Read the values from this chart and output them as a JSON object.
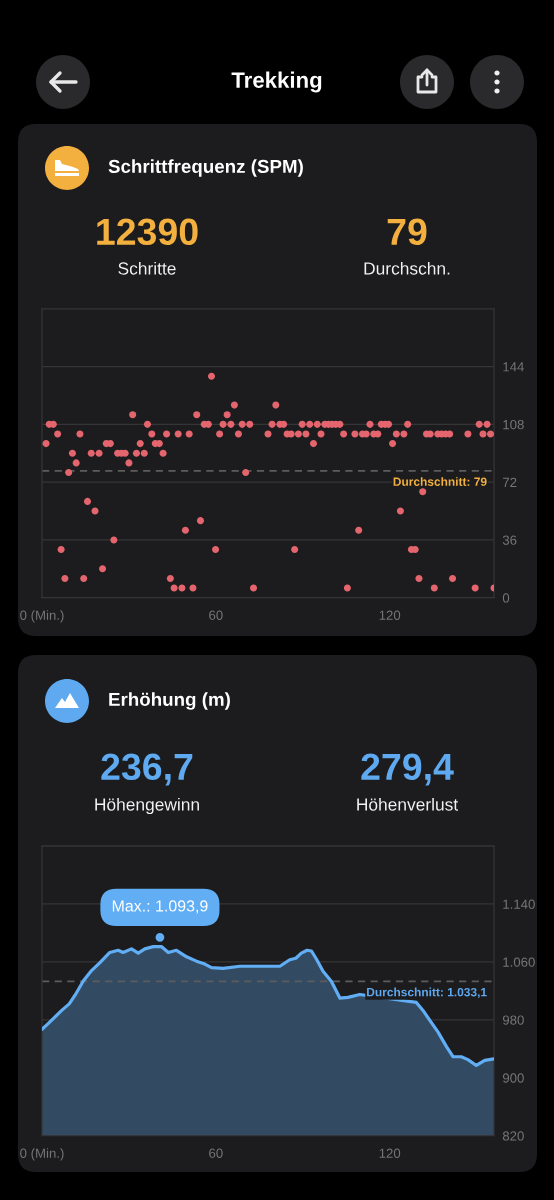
{
  "chart_data": [
    {
      "type": "other",
      "title": "Trekking"
    },
    {
      "type": "scatter",
      "title": "Schrittfrequenz (SPM)",
      "annotations": [
        "12390",
        "Schritte",
        "79",
        "Durchschn."
      ],
      "x": [
        1.4,
        2.5,
        3.9,
        5.4,
        6.6,
        7.9,
        9.2,
        10.5,
        11.8,
        13.1,
        14.4,
        15.7,
        17.0,
        18.3,
        19.7,
        20.9,
        22.2,
        23.6,
        24.8,
        26.1,
        27.4,
        28.7,
        30.0,
        31.3,
        32.6,
        33.9,
        35.3,
        36.4,
        37.9,
        39.1,
        40.5,
        41.8,
        43.0,
        44.3,
        45.6,
        47.0,
        48.3,
        49.5,
        50.8,
        52.1,
        53.4,
        54.7,
        56.0,
        57.4,
        58.5,
        59.9,
        61.3,
        62.5,
        63.9,
        65.2,
        66.4,
        67.8,
        69.1,
        70.3,
        71.7,
        73.0,
        78.0,
        79.4,
        80.7,
        82.1,
        83.4,
        84.6,
        86.0,
        87.2,
        88.5,
        89.8,
        91.1,
        92.4,
        93.7,
        95.0,
        96.3,
        97.6,
        98.9,
        100.1,
        101.4,
        102.8,
        104.1,
        105.4,
        108.0,
        109.3,
        110.6,
        111.9,
        113.2,
        114.5,
        115.9,
        117.1,
        118.4,
        119.6,
        121.0,
        122.3,
        123.7,
        124.9,
        126.2,
        127.5,
        128.8,
        130.1,
        131.4,
        132.7,
        134.0,
        135.4,
        136.6,
        137.9,
        139.3,
        140.7,
        141.7,
        147.0,
        149.5,
        150.9,
        152.2,
        153.6,
        154.8,
        156.0
      ],
      "values": [
        96,
        108,
        108,
        102,
        30,
        12,
        78,
        90,
        84,
        102,
        12,
        60,
        90,
        54,
        90,
        18,
        96,
        96,
        36,
        90,
        90,
        90,
        84,
        114,
        90,
        96,
        90,
        108,
        102,
        96,
        96,
        90,
        102,
        12,
        6,
        102,
        6,
        42,
        102,
        6,
        114,
        48,
        108,
        108,
        138,
        30,
        102,
        108,
        114,
        108,
        120,
        102,
        108,
        78,
        108,
        6,
        102,
        108,
        120,
        108,
        108,
        102,
        102,
        30,
        102,
        108,
        102,
        108,
        96,
        108,
        102,
        108,
        108,
        108,
        108,
        108,
        102,
        6,
        102,
        42,
        102,
        102,
        108,
        102,
        102,
        108,
        108,
        108,
        96,
        102,
        54,
        102,
        108,
        30,
        30,
        12,
        66,
        102,
        102,
        6,
        102,
        102,
        102,
        102,
        12,
        102,
        6,
        108,
        102,
        108,
        102,
        6
      ],
      "color": "#e5656e",
      "marker": "circle",
      "xlim": [
        0,
        156
      ],
      "ylim": [
        0,
        180
      ],
      "xticks": [
        {
          "value": 0,
          "label": "0 (Min.)"
        },
        60,
        120
      ],
      "yticks": [
        0,
        36,
        72,
        108,
        144
      ],
      "grid": "y",
      "ref_lines": [
        {
          "axis": "y",
          "value": 79,
          "label": "Durchschnitt: 79",
          "color": "#5c5c5c",
          "line_style": "dashed"
        }
      ]
    },
    {
      "type": "area",
      "title": "Erhöhung (m)",
      "annotations": [
        "236,7",
        "Höhengewinn",
        "279,4",
        "Höhenverlust",
        {
          "text": "Max.: 1.093,9",
          "x": 40.7,
          "y": 1093.9
        }
      ],
      "x": [
        0,
        2.2,
        4.5,
        6.8,
        9.4,
        11.4,
        14.3,
        17.1,
        20.0,
        23.4,
        26.3,
        28.0,
        30.9,
        33.2,
        35.5,
        38.4,
        41.3,
        43.6,
        46.4,
        49.9,
        53.3,
        56.2,
        58.5,
        62.5,
        68.3,
        76.3,
        82.1,
        85.5,
        87.6,
        89.5,
        91.5,
        93.0,
        94.7,
        97.0,
        99.9,
        102.8,
        105.6,
        109.7,
        129.2,
        131.5,
        134.4,
        136.7,
        139.6,
        141.9,
        144.7,
        147.0,
        149.9,
        152.8,
        156.0
      ],
      "values": [
        967,
        975,
        984,
        993,
        1002,
        1014,
        1034,
        1048,
        1059,
        1073,
        1076,
        1073,
        1078,
        1072,
        1078,
        1081,
        1081,
        1073,
        1076,
        1067,
        1061,
        1057,
        1052,
        1051,
        1054,
        1054,
        1054,
        1063,
        1065,
        1072,
        1076,
        1075,
        1064,
        1047,
        1033,
        1010,
        1011,
        1015,
        1004,
        993,
        976,
        963,
        943,
        929,
        929,
        925,
        917,
        924,
        926
      ],
      "color": "#62aef5",
      "xlim": [
        0,
        156
      ],
      "ylim": [
        820,
        1220
      ],
      "xticks": [
        {
          "value": 0,
          "label": "0 (Min.)"
        },
        60,
        120
      ],
      "yticks": [
        820,
        900,
        980,
        {
          "value": 1060,
          "label": "1.060"
        },
        {
          "value": 1140,
          "label": "1.140"
        }
      ],
      "grid": "y",
      "ref_lines": [
        {
          "axis": "y",
          "value": 1033.1,
          "label": "Durchschnitt: 1.033,1",
          "color": "#5c5c5c",
          "line_style": "dashed"
        }
      ]
    }
  ]
}
